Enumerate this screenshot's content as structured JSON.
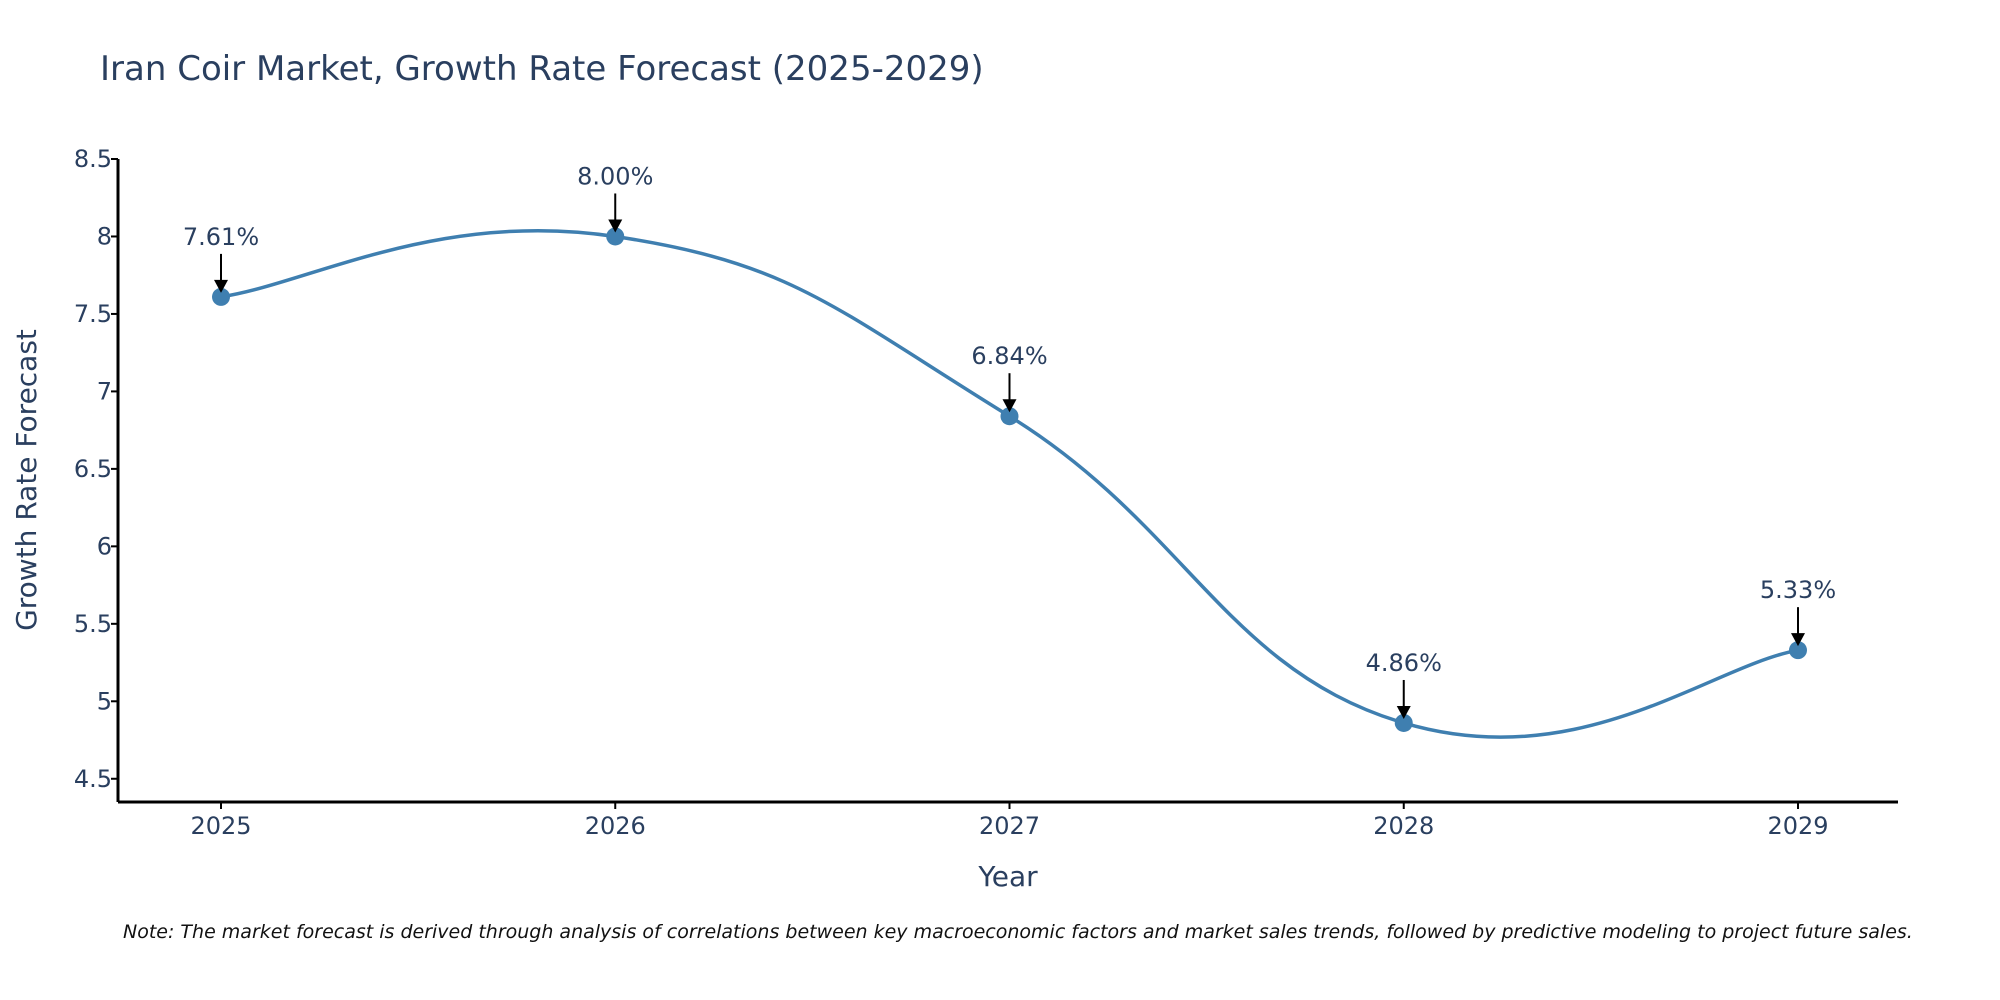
{
  "chart_data": {
    "type": "line",
    "title": "Iran Coir Market, Growth Rate Forecast (2025-2029)",
    "xlabel": "Year",
    "ylabel": "Growth Rate Forecast",
    "categories": [
      "2025",
      "2026",
      "2027",
      "2028",
      "2029"
    ],
    "series": [
      {
        "name": "Growth Rate Forecast",
        "values": [
          7.61,
          8.0,
          6.84,
          4.86,
          5.33
        ]
      }
    ],
    "data_labels": [
      "7.61%",
      "8.00%",
      "6.84%",
      "4.86%",
      "5.33%"
    ],
    "yticks": [
      "4.5",
      "5",
      "5.5",
      "6",
      "6.5",
      "7",
      "7.5",
      "8",
      "8.5"
    ],
    "ylim": [
      4.35,
      8.5
    ],
    "grid": false,
    "line_shape": "spline",
    "note": "Note: The market forecast is derived through analysis of correlations between key macroeconomic factors and market sales trends, followed by predictive modeling to project future sales."
  },
  "colors": {
    "line": "#3f7fb0",
    "marker": "#3f7fb0",
    "arrow": "#000000",
    "axis": "#000000",
    "text": "#2a3f5f"
  }
}
